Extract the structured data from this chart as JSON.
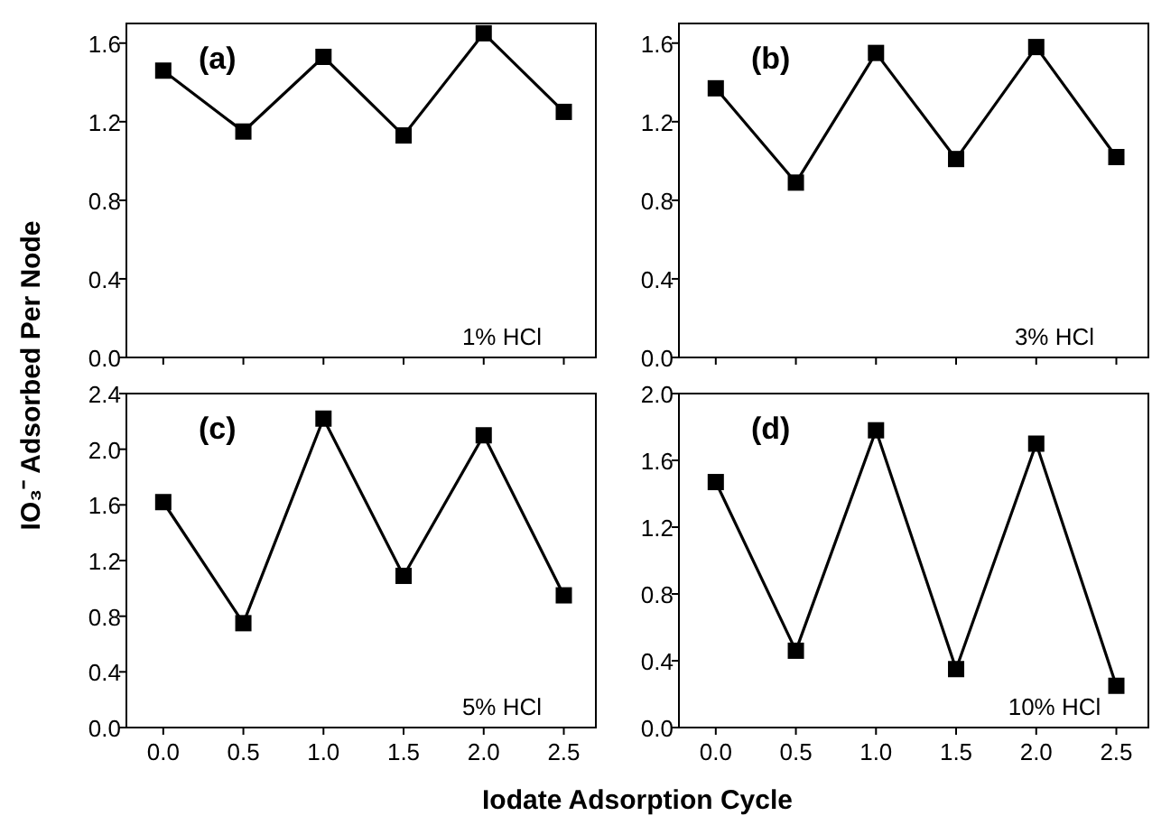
{
  "chart_data": [
    {
      "type": "line",
      "ylabel": "IO₃⁻ Adsorbed Per Node",
      "annotations": [
        "(a)",
        "1% HCl"
      ],
      "x": [
        0,
        0.5,
        1,
        1.5,
        2,
        2.5
      ],
      "series": [
        {
          "color": "#000000",
          "values": [
            1.46,
            1.15,
            1.53,
            1.13,
            1.65,
            1.25
          ]
        }
      ],
      "xlim": [
        -0.23,
        2.7
      ],
      "ylim": [
        0,
        1.7
      ],
      "xticks": [
        {
          "value": 0,
          "label": null
        },
        {
          "value": 0.5,
          "label": null
        },
        {
          "value": 1,
          "label": null
        },
        {
          "value": 1.5,
          "label": null
        },
        {
          "value": 2,
          "label": null
        },
        {
          "value": 2.5,
          "label": null
        }
      ],
      "yticks": [
        {
          "value": 0,
          "label": "0.0"
        },
        {
          "value": 0.4,
          "label": "0.4"
        },
        {
          "value": 0.8,
          "label": "0.8"
        },
        {
          "value": 1.2,
          "label": "1.2"
        },
        {
          "value": 1.6,
          "label": "1.6"
        }
      ],
      "tick_labels": "y",
      "marker": "square",
      "line_style": "solid",
      "grid": false
    },
    {
      "type": "line",
      "annotations": [
        "(b)",
        "3% HCl"
      ],
      "x": [
        0,
        0.5,
        1,
        1.5,
        2,
        2.5
      ],
      "series": [
        {
          "color": "#000000",
          "values": [
            1.37,
            0.89,
            1.55,
            1.01,
            1.58,
            1.02
          ]
        }
      ],
      "xlim": [
        -0.23,
        2.7
      ],
      "ylim": [
        0,
        1.7
      ],
      "xticks": [
        {
          "value": 0,
          "label": null
        },
        {
          "value": 0.5,
          "label": null
        },
        {
          "value": 1,
          "label": null
        },
        {
          "value": 1.5,
          "label": null
        },
        {
          "value": 2,
          "label": null
        },
        {
          "value": 2.5,
          "label": null
        }
      ],
      "yticks": [
        {
          "value": 0,
          "label": "0.0"
        },
        {
          "value": 0.4,
          "label": "0.4"
        },
        {
          "value": 0.8,
          "label": "0.8"
        },
        {
          "value": 1.2,
          "label": "1.2"
        },
        {
          "value": 1.6,
          "label": "1.6"
        }
      ],
      "tick_labels": "y",
      "marker": "square",
      "line_style": "solid",
      "grid": false
    },
    {
      "type": "line",
      "xlabel": "Iodate Adsorption Cycle",
      "annotations": [
        "(c)",
        "5% HCl"
      ],
      "x": [
        0,
        0.5,
        1,
        1.5,
        2,
        2.5
      ],
      "series": [
        {
          "color": "#000000",
          "values": [
            1.62,
            0.75,
            2.22,
            1.09,
            2.1,
            0.95
          ]
        }
      ],
      "xlim": [
        -0.23,
        2.7
      ],
      "ylim": [
        0,
        2.4
      ],
      "xticks": [
        {
          "value": 0,
          "label": "0.0"
        },
        {
          "value": 0.5,
          "label": "0.5"
        },
        {
          "value": 1,
          "label": "1.0"
        },
        {
          "value": 1.5,
          "label": "1.5"
        },
        {
          "value": 2,
          "label": "2.0"
        },
        {
          "value": 2.5,
          "label": "2.5"
        }
      ],
      "yticks": [
        {
          "value": 0,
          "label": "0.0"
        },
        {
          "value": 0.4,
          "label": "0.4"
        },
        {
          "value": 0.8,
          "label": "0.8"
        },
        {
          "value": 1.2,
          "label": "1.2"
        },
        {
          "value": 1.6,
          "label": "1.6"
        },
        {
          "value": 2,
          "label": "2.0"
        },
        {
          "value": 2.4,
          "label": "2.4"
        }
      ],
      "marker": "square",
      "line_style": "solid",
      "grid": false
    },
    {
      "type": "line",
      "annotations": [
        "(d)",
        "10% HCl"
      ],
      "x": [
        0,
        0.5,
        1,
        1.5,
        2,
        2.5
      ],
      "series": [
        {
          "color": "#000000",
          "values": [
            1.47,
            0.46,
            1.78,
            0.35,
            1.7,
            0.25
          ]
        }
      ],
      "xlim": [
        -0.23,
        2.7
      ],
      "ylim": [
        0,
        2.0
      ],
      "xticks": [
        {
          "value": 0,
          "label": "0.0"
        },
        {
          "value": 0.5,
          "label": "0.5"
        },
        {
          "value": 1,
          "label": "1.0"
        },
        {
          "value": 1.5,
          "label": "1.5"
        },
        {
          "value": 2,
          "label": "2.0"
        },
        {
          "value": 2.5,
          "label": "2.5"
        }
      ],
      "yticks": [
        {
          "value": 0,
          "label": "0.0"
        },
        {
          "value": 0.4,
          "label": "0.4"
        },
        {
          "value": 0.8,
          "label": "0.8"
        },
        {
          "value": 1.2,
          "label": "1.2"
        },
        {
          "value": 1.6,
          "label": "1.6"
        },
        {
          "value": 2,
          "label": "2.0"
        }
      ],
      "marker": "square",
      "line_style": "solid",
      "grid": false
    }
  ]
}
